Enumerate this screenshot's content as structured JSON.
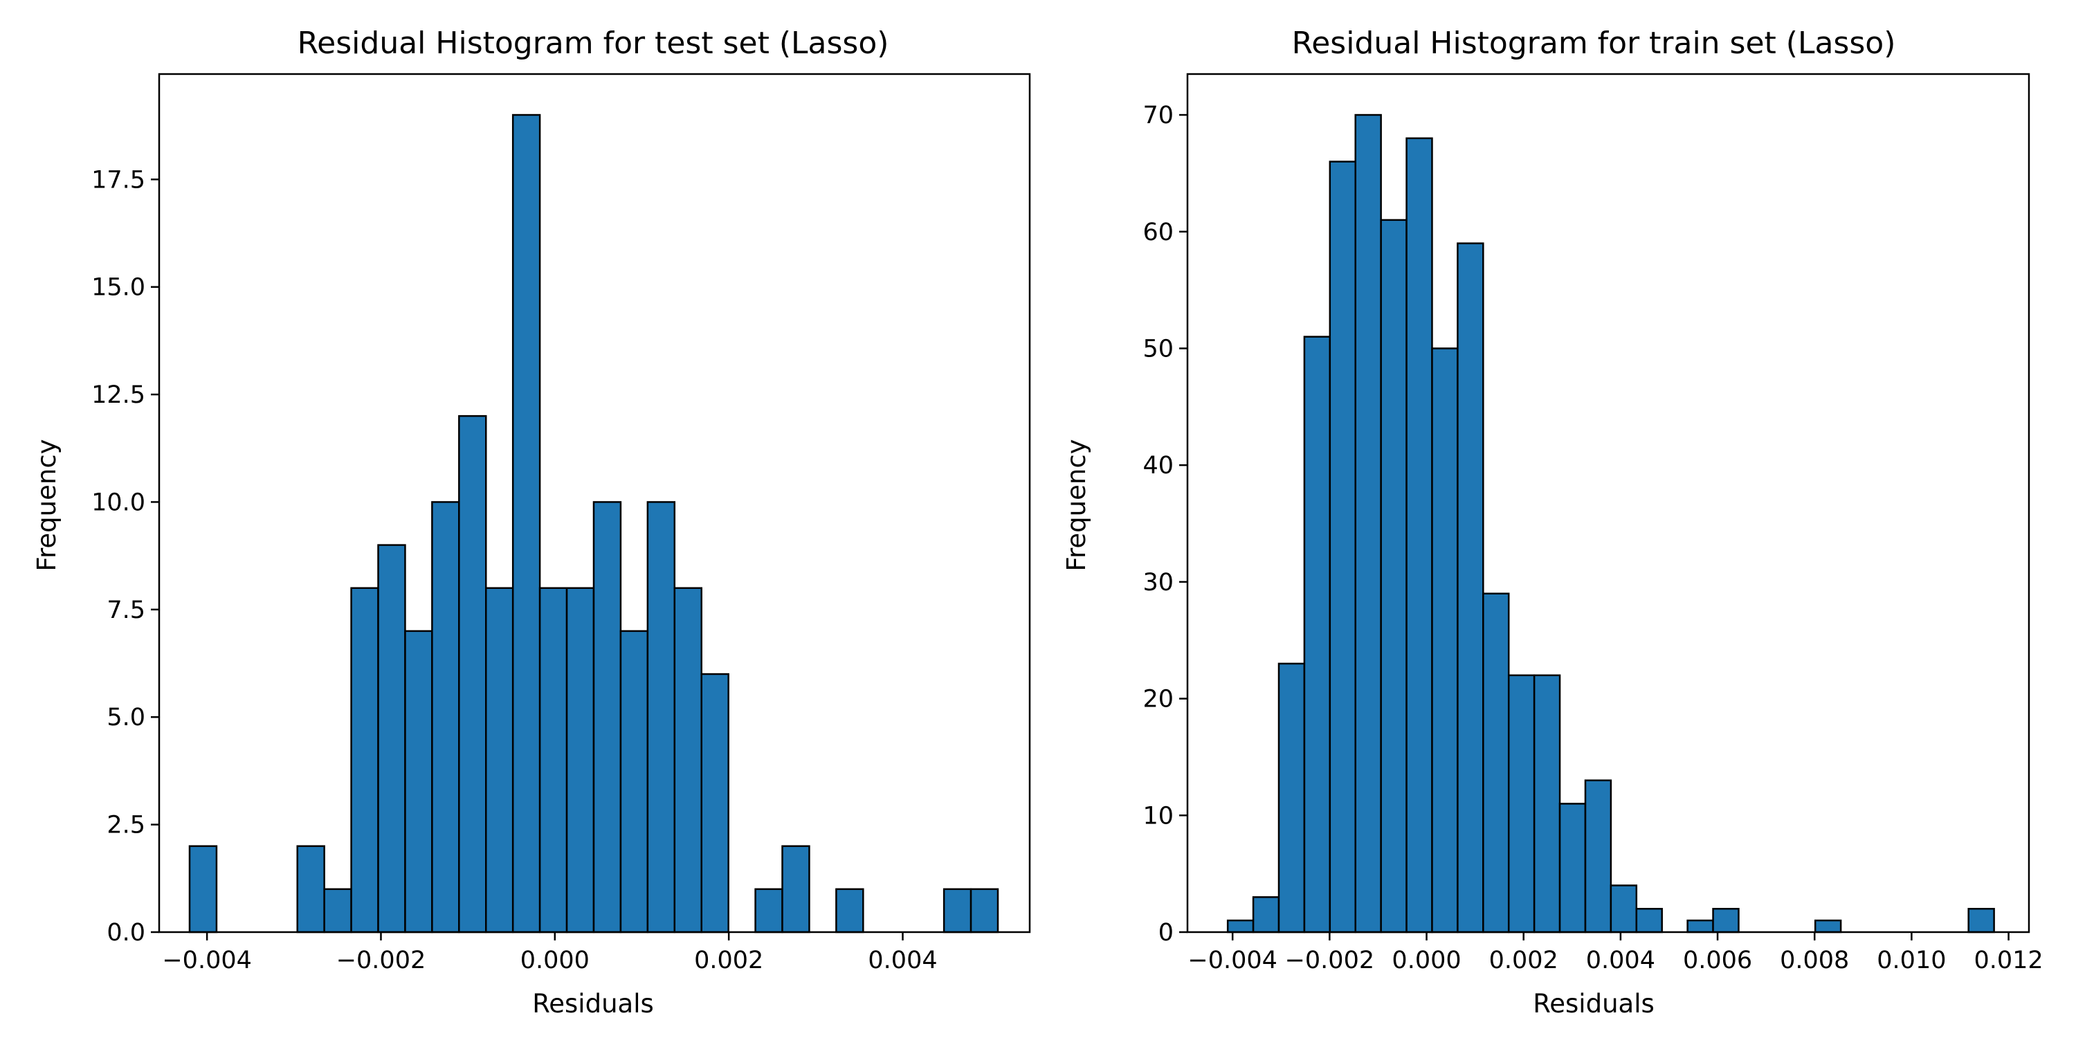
{
  "colors": {
    "bar_fill": "#1f77b4",
    "bar_edge": "#000000",
    "axis": "#000000",
    "background": "#ffffff"
  },
  "chart_data": [
    {
      "type": "bar",
      "subtype": "histogram",
      "title": "Residual Histogram for test set (Lasso)",
      "xlabel": "Residuals",
      "ylabel": "Frequency",
      "xlim": [
        -0.00455,
        0.00546
      ],
      "ylim": [
        0,
        19.95
      ],
      "bin_start": -0.0042,
      "bin_width": 0.0003098,
      "values": [
        2,
        0,
        0,
        0,
        2,
        1,
        8,
        9,
        7,
        10,
        12,
        8,
        19,
        8,
        8,
        10,
        7,
        10,
        8,
        6,
        0,
        1,
        2,
        0,
        1,
        0,
        0,
        0,
        1,
        1
      ],
      "xticks": [
        -0.004,
        -0.002,
        0.0,
        0.002,
        0.004
      ],
      "xtick_labels": [
        "−0.004",
        "−0.002",
        "0.000",
        "0.002",
        "0.004"
      ],
      "yticks": [
        0,
        2.5,
        5,
        7.5,
        10,
        12.5,
        15,
        17.5
      ],
      "ytick_labels": [
        "0.0",
        "2.5",
        "5.0",
        "7.5",
        "10.0",
        "12.5",
        "15.0",
        "17.5"
      ],
      "grid": false,
      "legend": "none"
    },
    {
      "type": "bar",
      "subtype": "histogram",
      "title": "Residual Histogram for train set (Lasso)",
      "xlabel": "Residuals",
      "ylabel": "Frequency",
      "xlim": [
        -0.00493,
        0.01242
      ],
      "ylim": [
        0,
        73.5
      ],
      "bin_start": -0.0041,
      "bin_width": 0.0005267,
      "values": [
        1,
        3,
        23,
        51,
        66,
        70,
        61,
        68,
        50,
        59,
        29,
        22,
        22,
        11,
        13,
        4,
        2,
        0,
        1,
        2,
        0,
        0,
        0,
        1,
        0,
        0,
        0,
        0,
        0,
        2
      ],
      "xticks": [
        -0.004,
        -0.002,
        0.0,
        0.002,
        0.004,
        0.006,
        0.008,
        0.01,
        0.012
      ],
      "xtick_labels": [
        "−0.004",
        "−0.002",
        "0.000",
        "0.002",
        "0.004",
        "0.006",
        "0.008",
        "0.010",
        "0.012"
      ],
      "yticks": [
        0,
        10,
        20,
        30,
        40,
        50,
        60,
        70
      ],
      "ytick_labels": [
        "0",
        "10",
        "20",
        "30",
        "40",
        "50",
        "60",
        "70"
      ],
      "grid": false,
      "legend": "none"
    }
  ]
}
